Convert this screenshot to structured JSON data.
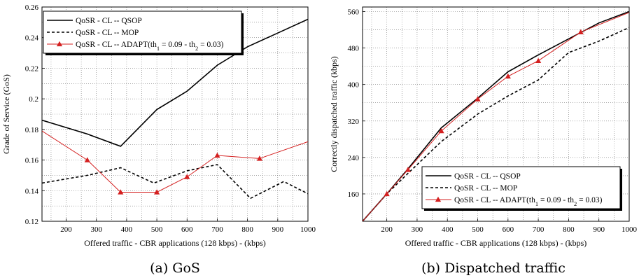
{
  "chart_data": [
    {
      "type": "line",
      "caption": "(a) GoS",
      "xlabel": "Offered traffic - CBR applications (128 kbps) - (kbps)",
      "ylabel": "Grade of Service (GoS)",
      "xlim": [
        120,
        1000
      ],
      "ylim": [
        0.12,
        0.26
      ],
      "xticks": [
        200,
        300,
        400,
        500,
        600,
        700,
        800,
        900,
        1000
      ],
      "yticks": [
        0.12,
        0.14,
        0.16,
        0.18,
        0.2,
        0.22,
        0.24,
        0.26
      ],
      "ytick_labels": [
        "0.12",
        "0.14",
        "0.16",
        "0.18",
        "0.2",
        "0.22",
        "0.24",
        "0.26"
      ],
      "grid": true,
      "legend_position": "top-left",
      "legend": [
        "QoSR - CL -- QSOP",
        "QoSR - CL -- MOP",
        "QoSR - CL -- ADAPT(th1 = 0.09 - th2 = 0.03)"
      ],
      "series": [
        {
          "name": "QoSR - CL -- QSOP",
          "style": "solid",
          "color": "#000000",
          "x": [
            120,
            270,
            380,
            500,
            600,
            700,
            800,
            900,
            1000
          ],
          "y": [
            0.186,
            0.177,
            0.169,
            0.193,
            0.205,
            0.222,
            0.234,
            0.243,
            0.252
          ]
        },
        {
          "name": "QoSR - CL -- MOP",
          "style": "dashed",
          "color": "#000000",
          "x": [
            120,
            270,
            380,
            490,
            600,
            700,
            810,
            920,
            1000
          ],
          "y": [
            0.145,
            0.15,
            0.155,
            0.145,
            0.153,
            0.157,
            0.135,
            0.146,
            0.138
          ]
        },
        {
          "name": "QoSR - CL -- ADAPT(th1 = 0.09 - th2 = 0.03)",
          "style": "solid-marker",
          "color": "#d42020",
          "x": [
            120,
            270,
            380,
            500,
            600,
            700,
            840,
            1000
          ],
          "y": [
            0.179,
            0.16,
            0.139,
            0.139,
            0.149,
            0.163,
            0.161,
            0.172
          ]
        }
      ]
    },
    {
      "type": "line",
      "caption": "(b) Dispatched traffic",
      "xlabel": "Offered traffic - CBR applications (128 kbps) - (kbps)",
      "ylabel": "Correctly dispatched traffic (kbps)",
      "xlim": [
        120,
        1000
      ],
      "ylim": [
        100,
        570
      ],
      "xticks": [
        200,
        300,
        400,
        500,
        600,
        700,
        800,
        900,
        1000
      ],
      "yticks": [
        160,
        240,
        320,
        400,
        480,
        560
      ],
      "ytick_labels": [
        "160",
        "240",
        "320",
        "400",
        "480",
        "560"
      ],
      "grid": true,
      "legend_position": "bottom-right",
      "legend": [
        "QoSR - CL -- QSOP",
        "QoSR - CL -- MOP",
        "QoSR - CL -- ADAPT(th1 = 0.09 - th2 = 0.03)"
      ],
      "series": [
        {
          "name": "QoSR - CL -- QSOP",
          "style": "solid",
          "color": "#000000",
          "x": [
            120,
            200,
            270,
            380,
            500,
            600,
            700,
            800,
            900,
            1000
          ],
          "y": [
            100,
            160,
            215,
            305,
            370,
            428,
            465,
            500,
            535,
            560
          ]
        },
        {
          "name": "QoSR - CL -- MOP",
          "style": "dashed",
          "color": "#000000",
          "x": [
            120,
            200,
            270,
            380,
            500,
            600,
            700,
            800,
            900,
            1000
          ],
          "y": [
            100,
            160,
            205,
            275,
            335,
            375,
            410,
            470,
            495,
            525
          ]
        },
        {
          "name": "QoSR - CL -- ADAPT(th1 = 0.09 - th2 = 0.03)",
          "style": "solid-marker",
          "color": "#d42020",
          "x": [
            120,
            200,
            270,
            380,
            500,
            600,
            700,
            840,
            1000
          ],
          "y": [
            100,
            160,
            213,
            298,
            368,
            418,
            452,
            515,
            558
          ]
        }
      ]
    }
  ]
}
